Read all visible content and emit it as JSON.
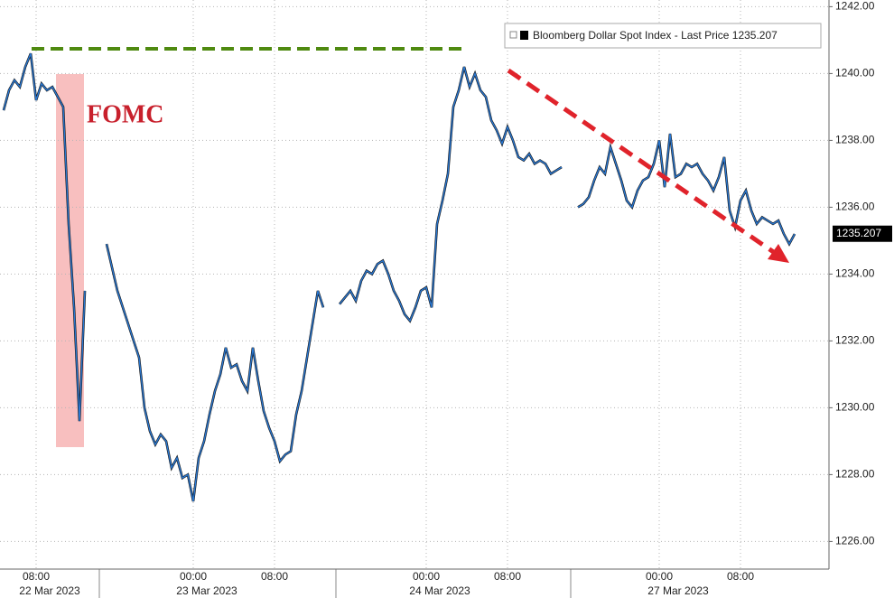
{
  "chart_data": {
    "type": "line",
    "annotations": [
      "FOMC"
    ],
    "categories": [
      null,
      null,
      null,
      null,
      null,
      null,
      "08:00",
      null,
      null,
      null,
      null,
      null,
      null,
      null,
      null,
      null,
      null,
      null,
      null,
      null,
      null,
      null,
      null,
      null,
      null,
      null,
      null,
      null,
      null,
      null,
      null,
      null,
      null,
      null,
      null,
      "00:00",
      null,
      null,
      null,
      null,
      null,
      null,
      null,
      null,
      null,
      null,
      null,
      null,
      null,
      null,
      "08:00",
      null,
      null,
      null,
      null,
      null,
      null,
      null,
      null,
      null,
      null,
      null,
      null,
      null,
      null,
      null,
      null,
      null,
      null,
      null,
      null,
      null,
      null,
      null,
      null,
      null,
      null,
      null,
      "00:00",
      null,
      null,
      null,
      null,
      null,
      null,
      null,
      null,
      null,
      null,
      null,
      null,
      null,
      null,
      "08:00",
      null,
      null,
      null,
      null,
      null,
      null,
      null,
      null,
      null,
      null,
      null,
      null,
      null,
      null,
      null,
      null,
      null,
      null,
      null,
      null,
      null,
      null,
      null,
      null,
      null,
      null,
      null,
      "00:00",
      null,
      null,
      null,
      null,
      null,
      null,
      null,
      null,
      null,
      null,
      null,
      null,
      null,
      null,
      "08:00",
      null,
      null,
      null,
      null,
      null,
      null,
      null,
      null,
      null
    ],
    "dates": [
      null,
      null,
      null,
      null,
      null,
      null,
      "22 Mar 2023",
      null,
      null,
      null,
      null,
      null,
      null,
      null,
      null,
      null,
      null,
      null,
      null,
      null,
      null,
      null,
      null,
      null,
      null,
      null,
      null,
      null,
      null,
      null,
      null,
      null,
      null,
      null,
      null,
      "23 Mar 2023",
      null,
      null,
      null,
      null,
      null,
      null,
      null,
      null,
      null,
      null,
      null,
      null,
      null,
      null,
      null,
      null,
      null,
      null,
      null,
      null,
      null,
      null,
      null,
      null,
      null,
      null,
      null,
      null,
      null,
      null,
      null,
      null,
      null,
      null,
      null,
      null,
      null,
      null,
      null,
      null,
      null,
      null,
      "24 Mar 2023",
      null,
      null,
      null,
      null,
      null,
      null,
      null,
      null,
      null,
      null,
      null,
      null,
      null,
      null,
      null,
      null,
      null,
      null,
      null,
      null,
      null,
      null,
      null,
      null,
      null,
      null,
      null,
      null,
      null,
      null,
      null,
      null,
      null,
      null,
      null,
      null,
      null,
      null,
      null,
      null,
      null,
      null,
      null,
      "27 Mar 2023",
      null,
      null,
      null,
      null,
      null,
      null,
      null,
      null,
      null,
      null,
      null,
      null,
      null,
      null,
      null,
      null,
      null,
      null,
      null,
      null,
      null,
      null,
      null,
      null
    ],
    "series": [
      {
        "name": "Bloomberg Dollar Spot Index - Last Price 1235.207",
        "color": "#2a78d2",
        "values": [
          1238.9,
          1239.5,
          1239.8,
          1239.6,
          1240.2,
          1240.6,
          1239.2,
          1239.7,
          1239.5,
          1239.6,
          1239.3,
          1239.0,
          1235.5,
          1233.0,
          1229.6,
          1233.5,
          null,
          null,
          null,
          1234.9,
          1234.2,
          1233.5,
          1233.0,
          1232.5,
          1232.0,
          1231.5,
          1230.0,
          1229.3,
          1228.9,
          1229.2,
          1229.0,
          1228.2,
          1228.5,
          1227.9,
          1228.0,
          1227.2,
          1228.5,
          1229.0,
          1229.8,
          1230.5,
          1231.0,
          1231.8,
          1231.2,
          1231.3,
          1230.8,
          1230.5,
          1231.8,
          1230.8,
          1229.9,
          1229.4,
          1229.0,
          1228.4,
          1228.6,
          1228.7,
          1229.8,
          1230.5,
          1231.5,
          1232.5,
          1233.5,
          1233.0,
          null,
          null,
          1233.1,
          1233.3,
          1233.5,
          1233.2,
          1233.8,
          1234.1,
          1234.0,
          1234.3,
          1234.4,
          1234.0,
          1233.5,
          1233.2,
          1232.8,
          1232.6,
          1233.0,
          1233.5,
          1233.6,
          1233.0,
          1235.5,
          1236.2,
          1237.0,
          1239.0,
          1239.5,
          1240.2,
          1239.6,
          1240.0,
          1239.5,
          1239.3,
          1238.6,
          1238.3,
          1237.9,
          1238.4,
          1238.0,
          1237.5,
          1237.4,
          1237.6,
          1237.3,
          1237.4,
          1237.3,
          1237.0,
          1237.1,
          1237.2,
          null,
          null,
          1236.0,
          1236.1,
          1236.3,
          1236.8,
          1237.2,
          1237.0,
          1237.8,
          1237.3,
          1236.8,
          1236.2,
          1236.0,
          1236.5,
          1236.8,
          1236.9,
          1237.3,
          1238.0,
          1236.6,
          1238.2,
          1236.9,
          1237.0,
          1237.3,
          1237.2,
          1237.3,
          1237.0,
          1236.8,
          1236.5,
          1236.9,
          1237.5,
          1235.9,
          1235.4,
          1236.2,
          1236.5,
          1235.9,
          1235.5,
          1235.7,
          1235.6,
          1235.5,
          1235.6,
          1235.2,
          1234.9,
          1235.2
        ]
      }
    ],
    "last_value": {
      "value": 1235.207,
      "label": "1235.207"
    },
    "ylim": [
      1225.2,
      1242.2
    ],
    "yticks": [
      {
        "value": 1226,
        "label": "1226.00"
      },
      {
        "value": 1228,
        "label": "1228.00"
      },
      {
        "value": 1230,
        "label": "1230.00"
      },
      {
        "value": 1232,
        "label": "1232.00"
      },
      {
        "value": 1234,
        "label": "1234.00"
      },
      {
        "value": 1236,
        "label": "1236.00"
      },
      {
        "value": 1238,
        "label": "1238.00"
      },
      {
        "value": 1240,
        "label": "1240.00"
      },
      {
        "value": 1242,
        "label": "1242.00"
      }
    ],
    "grid": true
  }
}
